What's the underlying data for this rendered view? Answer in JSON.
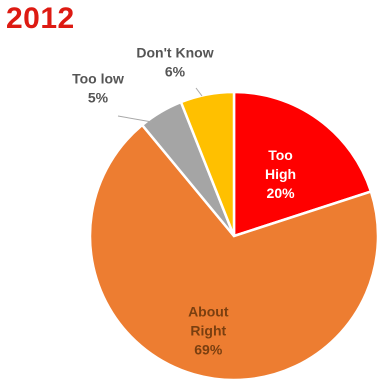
{
  "chart_data": {
    "type": "pie",
    "title": "2012",
    "start_angle_deg": 0,
    "direction": "clockwise",
    "slices": [
      {
        "label_lines": [
          "Too",
          "High"
        ],
        "value": 20,
        "value_text": "20%",
        "color": "#ff0000",
        "label_color": "#ffffff",
        "label_position": "inside"
      },
      {
        "label_lines": [
          "About",
          "Right"
        ],
        "value": 69,
        "value_text": "69%",
        "color": "#ed7d31",
        "label_color": "#7a3f10",
        "label_position": "inside"
      },
      {
        "label_lines": [
          "Too low"
        ],
        "value": 5,
        "value_text": "5%",
        "color": "#a5a5a5",
        "label_color": "#555555",
        "label_position": "outside"
      },
      {
        "label_lines": [
          "Don't Know"
        ],
        "value": 6,
        "value_text": "6%",
        "color": "#ffc000",
        "label_color": "#555555",
        "label_position": "outside"
      }
    ]
  }
}
